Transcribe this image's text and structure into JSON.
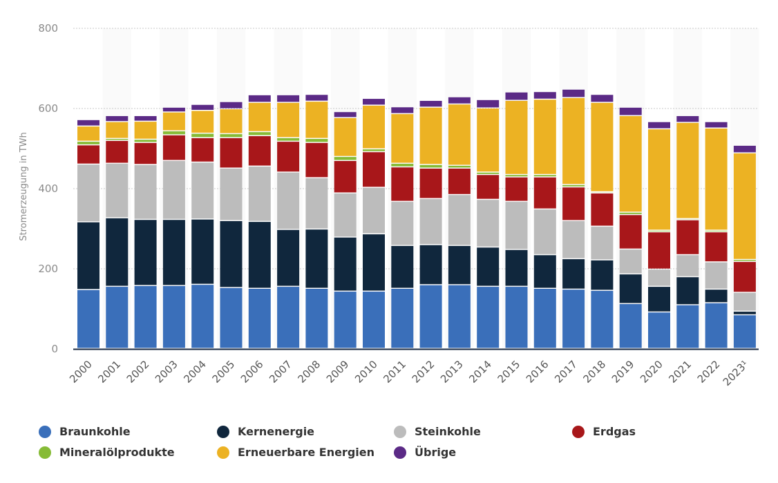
{
  "chart_data": {
    "type": "bar",
    "stacked": true,
    "title": "",
    "xlabel": "",
    "ylabel": "Stromerzeugung in TWh",
    "ylim": [
      0,
      800
    ],
    "yticks": [
      0,
      200,
      400,
      600,
      800
    ],
    "grid": true,
    "legend_position": "bottom",
    "categories": [
      "2000",
      "2001",
      "2002",
      "2003",
      "2004",
      "2005",
      "2006",
      "2007",
      "2008",
      "2009",
      "2010",
      "2011",
      "2012",
      "2013",
      "2014",
      "2015",
      "2016",
      "2017",
      "2018",
      "2019",
      "2020",
      "2021",
      "2022",
      "2023¹"
    ],
    "series": [
      {
        "name": "Braunkohle",
        "color": "#3a6fba",
        "values": [
          147,
          155,
          157,
          157,
          160,
          152,
          150,
          155,
          150,
          143,
          143,
          150,
          159,
          159,
          155,
          155,
          150,
          148,
          145,
          112,
          91,
          109,
          114,
          84
        ]
      },
      {
        "name": "Kernenergie",
        "color": "#10273d",
        "values": [
          169,
          171,
          165,
          165,
          163,
          167,
          167,
          142,
          148,
          135,
          143,
          107,
          100,
          98,
          98,
          92,
          84,
          76,
          76,
          74,
          64,
          70,
          34,
          9
        ]
      },
      {
        "name": "Steinkohle",
        "color": "#bcbcbc",
        "values": [
          144,
          136,
          137,
          147,
          142,
          131,
          138,
          143,
          128,
          110,
          116,
          110,
          115,
          127,
          119,
          120,
          114,
          95,
          84,
          62,
          43,
          55,
          68,
          47
        ]
      },
      {
        "name": "Erdgas",
        "color": "#a8171a",
        "values": [
          48,
          57,
          55,
          64,
          61,
          76,
          76,
          77,
          88,
          81,
          89,
          86,
          76,
          66,
          62,
          61,
          80,
          84,
          83,
          86,
          93,
          87,
          75,
          77
        ]
      },
      {
        "name": "Mineralölprodukte",
        "color": "#86bb36",
        "values": [
          9,
          5,
          8,
          10,
          11,
          10,
          10,
          9,
          10,
          10,
          7,
          9,
          9,
          7,
          6,
          6,
          6,
          6,
          3,
          6,
          4,
          3,
          4,
          5
        ]
      },
      {
        "name": "Erneuerbare Energien",
        "color": "#ecb223",
        "values": [
          38,
          42,
          45,
          47,
          57,
          62,
          73,
          88,
          93,
          97,
          109,
          124,
          143,
          153,
          160,
          185,
          188,
          217,
          223,
          241,
          253,
          240,
          255,
          266
        ]
      },
      {
        "name": "Übrige",
        "color": "#5b2a86",
        "values": [
          16,
          15,
          14,
          12,
          15,
          18,
          19,
          19,
          17,
          15,
          17,
          17,
          17,
          18,
          21,
          21,
          19,
          21,
          20,
          21,
          18,
          17,
          16,
          19
        ]
      }
    ]
  },
  "legend": {
    "items": [
      {
        "label": "Braunkohle",
        "color": "#3a6fba"
      },
      {
        "label": "Kernenergie",
        "color": "#10273d"
      },
      {
        "label": "Steinkohle",
        "color": "#bcbcbc"
      },
      {
        "label": "Erdgas",
        "color": "#a8171a"
      },
      {
        "label": "Mineralölprodukte",
        "color": "#86bb36"
      },
      {
        "label": "Erneuerbare Energien",
        "color": "#ecb223"
      },
      {
        "label": "Übrige",
        "color": "#5b2a86"
      }
    ]
  }
}
